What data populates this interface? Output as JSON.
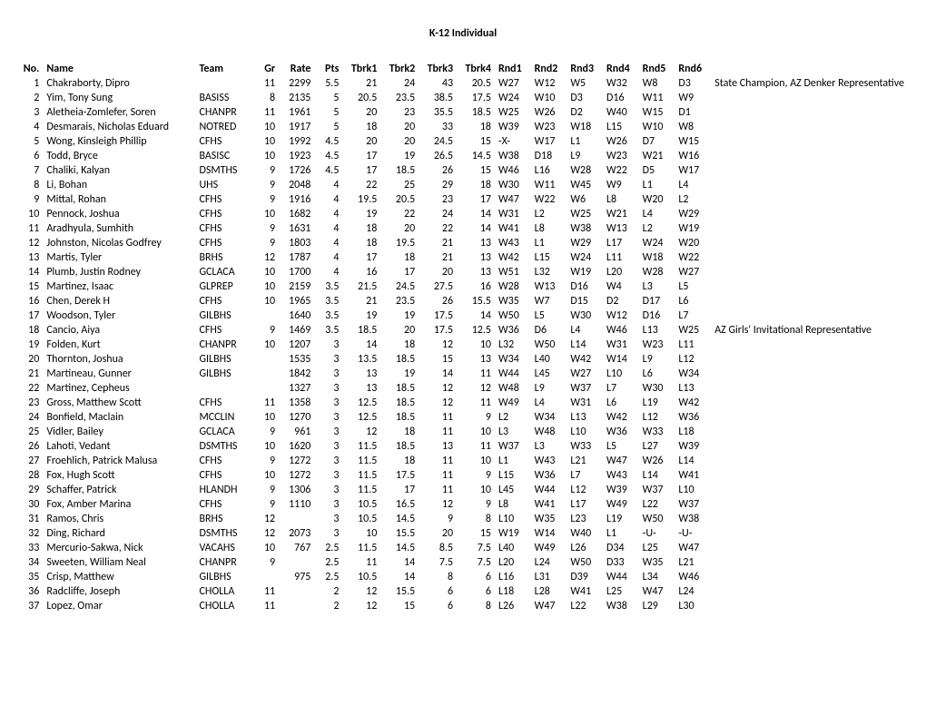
{
  "title": "K-12 Individual",
  "columns": [
    "No.",
    "Name",
    "Team",
    "Gr",
    "Rate",
    "Pts",
    "Tbrk1",
    "Tbrk2",
    "Tbrk3",
    "Tbrk4",
    "Rnd1",
    "Rnd2",
    "Rnd3",
    "Rnd4",
    "Rnd5",
    "Rnd6",
    ""
  ],
  "rows": [
    {
      "no": 1,
      "name": "Chakraborty, Dipro",
      "team": "",
      "gr": 11,
      "rate": 2299,
      "pts": 5.5,
      "t1": 21,
      "t2": 24,
      "t3": 43,
      "t4": 20.5,
      "r1": "W27",
      "r2": "W12",
      "r3": "W5",
      "r4": "W32",
      "r5": "W8",
      "r6": "D3",
      "note": "State Champion, AZ Denker Representative"
    },
    {
      "no": 2,
      "name": "Yim, Tony Sung",
      "team": "BASISS",
      "gr": 8,
      "rate": 2135,
      "pts": 5,
      "t1": 20.5,
      "t2": 23.5,
      "t3": 38.5,
      "t4": 17.5,
      "r1": "W24",
      "r2": "W10",
      "r3": "D3",
      "r4": "D16",
      "r5": "W11",
      "r6": "W9",
      "note": ""
    },
    {
      "no": 3,
      "name": "Aletheia-Zomlefer, Soren",
      "team": "CHANPR",
      "gr": 11,
      "rate": 1961,
      "pts": 5,
      "t1": 20,
      "t2": 23,
      "t3": 35.5,
      "t4": 18.5,
      "r1": "W25",
      "r2": "W26",
      "r3": "D2",
      "r4": "W40",
      "r5": "W15",
      "r6": "D1",
      "note": ""
    },
    {
      "no": 4,
      "name": "Desmarais, Nicholas Eduard",
      "team": "NOTRED",
      "gr": 10,
      "rate": 1917,
      "pts": 5,
      "t1": 18,
      "t2": 20,
      "t3": 33,
      "t4": 18,
      "r1": "W39",
      "r2": "W23",
      "r3": "W18",
      "r4": "L15",
      "r5": "W10",
      "r6": "W8",
      "note": ""
    },
    {
      "no": 5,
      "name": "Wong, Kinsleigh Phillip",
      "team": "CFHS",
      "gr": 10,
      "rate": 1992,
      "pts": 4.5,
      "t1": 20,
      "t2": 20,
      "t3": 24.5,
      "t4": 15,
      "r1": "-X-",
      "r2": "W17",
      "r3": "L1",
      "r4": "W26",
      "r5": "D7",
      "r6": "W15",
      "note": ""
    },
    {
      "no": 6,
      "name": "Todd, Bryce",
      "team": "BASISC",
      "gr": 10,
      "rate": 1923,
      "pts": 4.5,
      "t1": 17,
      "t2": 19,
      "t3": 26.5,
      "t4": 14.5,
      "r1": "W38",
      "r2": "D18",
      "r3": "L9",
      "r4": "W23",
      "r5": "W21",
      "r6": "W16",
      "note": ""
    },
    {
      "no": 7,
      "name": "Chaliki, Kalyan",
      "team": "DSMTHS",
      "gr": 9,
      "rate": 1726,
      "pts": 4.5,
      "t1": 17,
      "t2": 18.5,
      "t3": 26,
      "t4": 15,
      "r1": "W46",
      "r2": "L16",
      "r3": "W28",
      "r4": "W22",
      "r5": "D5",
      "r6": "W17",
      "note": ""
    },
    {
      "no": 8,
      "name": "Li, Bohan",
      "team": "UHS",
      "gr": 9,
      "rate": 2048,
      "pts": 4,
      "t1": 22,
      "t2": 25,
      "t3": 29,
      "t4": 18,
      "r1": "W30",
      "r2": "W11",
      "r3": "W45",
      "r4": "W9",
      "r5": "L1",
      "r6": "L4",
      "note": ""
    },
    {
      "no": 9,
      "name": "Mittal, Rohan",
      "team": "CFHS",
      "gr": 9,
      "rate": 1916,
      "pts": 4,
      "t1": 19.5,
      "t2": 20.5,
      "t3": 23,
      "t4": 17,
      "r1": "W47",
      "r2": "W22",
      "r3": "W6",
      "r4": "L8",
      "r5": "W20",
      "r6": "L2",
      "note": ""
    },
    {
      "no": 10,
      "name": "Pennock, Joshua",
      "team": "CFHS",
      "gr": 10,
      "rate": 1682,
      "pts": 4,
      "t1": 19,
      "t2": 22,
      "t3": 24,
      "t4": 14,
      "r1": "W31",
      "r2": "L2",
      "r3": "W25",
      "r4": "W21",
      "r5": "L4",
      "r6": "W29",
      "note": ""
    },
    {
      "no": 11,
      "name": "Aradhyula, Sumhith",
      "team": "CFHS",
      "gr": 9,
      "rate": 1631,
      "pts": 4,
      "t1": 18,
      "t2": 20,
      "t3": 22,
      "t4": 14,
      "r1": "W41",
      "r2": "L8",
      "r3": "W38",
      "r4": "W13",
      "r5": "L2",
      "r6": "W19",
      "note": ""
    },
    {
      "no": 12,
      "name": "Johnston, Nicolas Godfrey",
      "team": "CFHS",
      "gr": 9,
      "rate": 1803,
      "pts": 4,
      "t1": 18,
      "t2": 19.5,
      "t3": 21,
      "t4": 13,
      "r1": "W43",
      "r2": "L1",
      "r3": "W29",
      "r4": "L17",
      "r5": "W24",
      "r6": "W20",
      "note": ""
    },
    {
      "no": 13,
      "name": "Martis, Tyler",
      "team": "BRHS",
      "gr": 12,
      "rate": 1787,
      "pts": 4,
      "t1": 17,
      "t2": 18,
      "t3": 21,
      "t4": 13,
      "r1": "W42",
      "r2": "L15",
      "r3": "W24",
      "r4": "L11",
      "r5": "W18",
      "r6": "W22",
      "note": ""
    },
    {
      "no": 14,
      "name": "Plumb, Justin Rodney",
      "team": "GCLACA",
      "gr": 10,
      "rate": 1700,
      "pts": 4,
      "t1": 16,
      "t2": 17,
      "t3": 20,
      "t4": 13,
      "r1": "W51",
      "r2": "L32",
      "r3": "W19",
      "r4": "L20",
      "r5": "W28",
      "r6": "W27",
      "note": ""
    },
    {
      "no": 15,
      "name": "Martinez, Isaac",
      "team": "GLPREP",
      "gr": 10,
      "rate": 2159,
      "pts": 3.5,
      "t1": 21.5,
      "t2": 24.5,
      "t3": 27.5,
      "t4": 16,
      "r1": "W28",
      "r2": "W13",
      "r3": "D16",
      "r4": "W4",
      "r5": "L3",
      "r6": "L5",
      "note": ""
    },
    {
      "no": 16,
      "name": "Chen, Derek H",
      "team": "CFHS",
      "gr": 10,
      "rate": 1965,
      "pts": 3.5,
      "t1": 21,
      "t2": 23.5,
      "t3": 26,
      "t4": 15.5,
      "r1": "W35",
      "r2": "W7",
      "r3": "D15",
      "r4": "D2",
      "r5": "D17",
      "r6": "L6",
      "note": ""
    },
    {
      "no": 17,
      "name": "Woodson, Tyler",
      "team": "GILBHS",
      "gr": "",
      "rate": 1640,
      "pts": 3.5,
      "t1": 19,
      "t2": 19,
      "t3": 17.5,
      "t4": 14,
      "r1": "W50",
      "r2": "L5",
      "r3": "W30",
      "r4": "W12",
      "r5": "D16",
      "r6": "L7",
      "note": ""
    },
    {
      "no": 18,
      "name": "Cancio, Aiya",
      "team": "CFHS",
      "gr": 9,
      "rate": 1469,
      "pts": 3.5,
      "t1": 18.5,
      "t2": 20,
      "t3": 17.5,
      "t4": 12.5,
      "r1": "W36",
      "r2": "D6",
      "r3": "L4",
      "r4": "W46",
      "r5": "L13",
      "r6": "W25",
      "note": "AZ Girls' Invitational Representative"
    },
    {
      "no": 19,
      "name": "Folden, Kurt",
      "team": "CHANPR",
      "gr": 10,
      "rate": 1207,
      "pts": 3,
      "t1": 14,
      "t2": 18,
      "t3": 12,
      "t4": 10,
      "r1": "L32",
      "r2": "W50",
      "r3": "L14",
      "r4": "W31",
      "r5": "W23",
      "r6": "L11",
      "note": ""
    },
    {
      "no": 20,
      "name": "Thornton, Joshua",
      "team": "GILBHS",
      "gr": "",
      "rate": 1535,
      "pts": 3,
      "t1": 13.5,
      "t2": 18.5,
      "t3": 15,
      "t4": 13,
      "r1": "W34",
      "r2": "L40",
      "r3": "W42",
      "r4": "W14",
      "r5": "L9",
      "r6": "L12",
      "note": ""
    },
    {
      "no": 21,
      "name": "Martineau, Gunner",
      "team": "GILBHS",
      "gr": "",
      "rate": 1842,
      "pts": 3,
      "t1": 13,
      "t2": 19,
      "t3": 14,
      "t4": 11,
      "r1": "W44",
      "r2": "L45",
      "r3": "W27",
      "r4": "L10",
      "r5": "L6",
      "r6": "W34",
      "note": ""
    },
    {
      "no": 22,
      "name": "Martinez, Cepheus",
      "team": "",
      "gr": "",
      "rate": 1327,
      "pts": 3,
      "t1": 13,
      "t2": 18.5,
      "t3": 12,
      "t4": 12,
      "r1": "W48",
      "r2": "L9",
      "r3": "W37",
      "r4": "L7",
      "r5": "W30",
      "r6": "L13",
      "note": ""
    },
    {
      "no": 23,
      "name": "Gross, Matthew Scott",
      "team": "CFHS",
      "gr": 11,
      "rate": 1358,
      "pts": 3,
      "t1": 12.5,
      "t2": 18.5,
      "t3": 12,
      "t4": 11,
      "r1": "W49",
      "r2": "L4",
      "r3": "W31",
      "r4": "L6",
      "r5": "L19",
      "r6": "W42",
      "note": ""
    },
    {
      "no": 24,
      "name": "Bonfield, Maclain",
      "team": "MCCLIN",
      "gr": 10,
      "rate": 1270,
      "pts": 3,
      "t1": 12.5,
      "t2": 18.5,
      "t3": 11,
      "t4": 9,
      "r1": "L2",
      "r2": "W34",
      "r3": "L13",
      "r4": "W42",
      "r5": "L12",
      "r6": "W36",
      "note": ""
    },
    {
      "no": 25,
      "name": "Vidler, Bailey",
      "team": "GCLACA",
      "gr": 9,
      "rate": 961,
      "pts": 3,
      "t1": 12,
      "t2": 18,
      "t3": 11,
      "t4": 10,
      "r1": "L3",
      "r2": "W48",
      "r3": "L10",
      "r4": "W36",
      "r5": "W33",
      "r6": "L18",
      "note": ""
    },
    {
      "no": 26,
      "name": "Lahoti, Vedant",
      "team": "DSMTHS",
      "gr": 10,
      "rate": 1620,
      "pts": 3,
      "t1": 11.5,
      "t2": 18.5,
      "t3": 13,
      "t4": 11,
      "r1": "W37",
      "r2": "L3",
      "r3": "W33",
      "r4": "L5",
      "r5": "L27",
      "r6": "W39",
      "note": ""
    },
    {
      "no": 27,
      "name": "Froehlich, Patrick Malusa",
      "team": "CFHS",
      "gr": 9,
      "rate": 1272,
      "pts": 3,
      "t1": 11.5,
      "t2": 18,
      "t3": 11,
      "t4": 10,
      "r1": "L1",
      "r2": "W43",
      "r3": "L21",
      "r4": "W47",
      "r5": "W26",
      "r6": "L14",
      "note": ""
    },
    {
      "no": 28,
      "name": "Fox, Hugh Scott",
      "team": "CFHS",
      "gr": 10,
      "rate": 1272,
      "pts": 3,
      "t1": 11.5,
      "t2": 17.5,
      "t3": 11,
      "t4": 9,
      "r1": "L15",
      "r2": "W36",
      "r3": "L7",
      "r4": "W43",
      "r5": "L14",
      "r6": "W41",
      "note": ""
    },
    {
      "no": 29,
      "name": "Schaffer, Patrick",
      "team": "HLANDH",
      "gr": 9,
      "rate": 1306,
      "pts": 3,
      "t1": 11.5,
      "t2": 17,
      "t3": 11,
      "t4": 10,
      "r1": "L45",
      "r2": "W44",
      "r3": "L12",
      "r4": "W39",
      "r5": "W37",
      "r6": "L10",
      "note": ""
    },
    {
      "no": 30,
      "name": "Fox, Amber Marina",
      "team": "CFHS",
      "gr": 9,
      "rate": 1110,
      "pts": 3,
      "t1": 10.5,
      "t2": 16.5,
      "t3": 12,
      "t4": 9,
      "r1": "L8",
      "r2": "W41",
      "r3": "L17",
      "r4": "W49",
      "r5": "L22",
      "r6": "W37",
      "note": ""
    },
    {
      "no": 31,
      "name": "Ramos, Chris",
      "team": "BRHS",
      "gr": 12,
      "rate": "",
      "pts": 3,
      "t1": 10.5,
      "t2": 14.5,
      "t3": 9,
      "t4": 8,
      "r1": "L10",
      "r2": "W35",
      "r3": "L23",
      "r4": "L19",
      "r5": "W50",
      "r6": "W38",
      "note": ""
    },
    {
      "no": 32,
      "name": "Ding, Richard",
      "team": "DSMTHS",
      "gr": 12,
      "rate": 2073,
      "pts": 3,
      "t1": 10,
      "t2": 15.5,
      "t3": 20,
      "t4": 15,
      "r1": "W19",
      "r2": "W14",
      "r3": "W40",
      "r4": "L1",
      "r5": "-U-",
      "r6": "-U-",
      "note": ""
    },
    {
      "no": 33,
      "name": "Mercurio-Sakwa, Nick",
      "team": "VACAHS",
      "gr": 10,
      "rate": 767,
      "pts": 2.5,
      "t1": 11.5,
      "t2": 14.5,
      "t3": 8.5,
      "t4": 7.5,
      "r1": "L40",
      "r2": "W49",
      "r3": "L26",
      "r4": "D34",
      "r5": "L25",
      "r6": "W47",
      "note": ""
    },
    {
      "no": 34,
      "name": "Sweeten, William Neal",
      "team": "CHANPR",
      "gr": 9,
      "rate": "",
      "pts": 2.5,
      "t1": 11,
      "t2": 14,
      "t3": 7.5,
      "t4": 7.5,
      "r1": "L20",
      "r2": "L24",
      "r3": "W50",
      "r4": "D33",
      "r5": "W35",
      "r6": "L21",
      "note": ""
    },
    {
      "no": 35,
      "name": "Crisp, Matthew",
      "team": "GILBHS",
      "gr": "",
      "rate": 975,
      "pts": 2.5,
      "t1": 10.5,
      "t2": 14,
      "t3": 8,
      "t4": 6,
      "r1": "L16",
      "r2": "L31",
      "r3": "D39",
      "r4": "W44",
      "r5": "L34",
      "r6": "W46",
      "note": ""
    },
    {
      "no": 36,
      "name": "Radcliffe, Joseph",
      "team": "CHOLLA",
      "gr": 11,
      "rate": "",
      "pts": 2,
      "t1": 12,
      "t2": 15.5,
      "t3": 6,
      "t4": 6,
      "r1": "L18",
      "r2": "L28",
      "r3": "W41",
      "r4": "L25",
      "r5": "W47",
      "r6": "L24",
      "note": ""
    },
    {
      "no": 37,
      "name": "Lopez, Omar",
      "team": "CHOLLA",
      "gr": 11,
      "rate": "",
      "pts": 2,
      "t1": 12,
      "t2": 15,
      "t3": 6,
      "t4": 8,
      "r1": "L26",
      "r2": "W47",
      "r3": "L22",
      "r4": "W38",
      "r5": "L29",
      "r6": "L30",
      "note": ""
    }
  ]
}
